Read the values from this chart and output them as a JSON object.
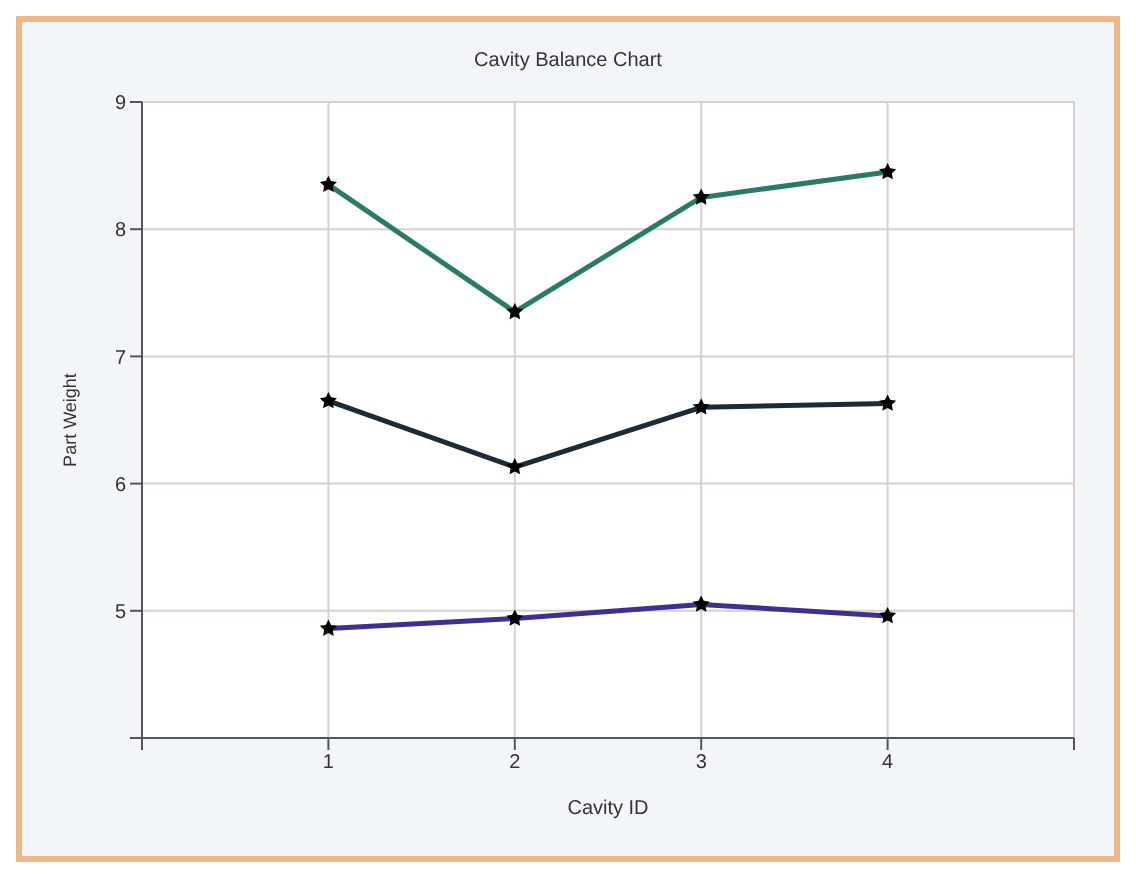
{
  "chart_data": {
    "type": "line",
    "title": "Cavity Balance Chart",
    "xlabel": "Cavity ID",
    "ylabel": "Part Weight",
    "x": [
      1,
      2,
      3,
      4
    ],
    "series": [
      {
        "color": "#2a7a68",
        "values": [
          8.35,
          7.35,
          8.25,
          8.45
        ]
      },
      {
        "color": "#1c2b3a",
        "values": [
          6.65,
          6.13,
          6.6,
          6.63
        ]
      },
      {
        "color": "#3f2f8f",
        "values": [
          4.86,
          4.94,
          5.05,
          4.96
        ]
      }
    ],
    "xlim": [
      0,
      5
    ],
    "xticks": [
      {
        "value": 0,
        "label": null
      },
      1,
      2,
      3,
      4,
      {
        "value": 5,
        "label": null
      }
    ],
    "ylim": [
      4,
      9
    ],
    "yticks": [
      {
        "value": 4,
        "label": null
      },
      5,
      6,
      7,
      8,
      9
    ],
    "grid": true,
    "marker": "star",
    "line_style": "solid"
  }
}
